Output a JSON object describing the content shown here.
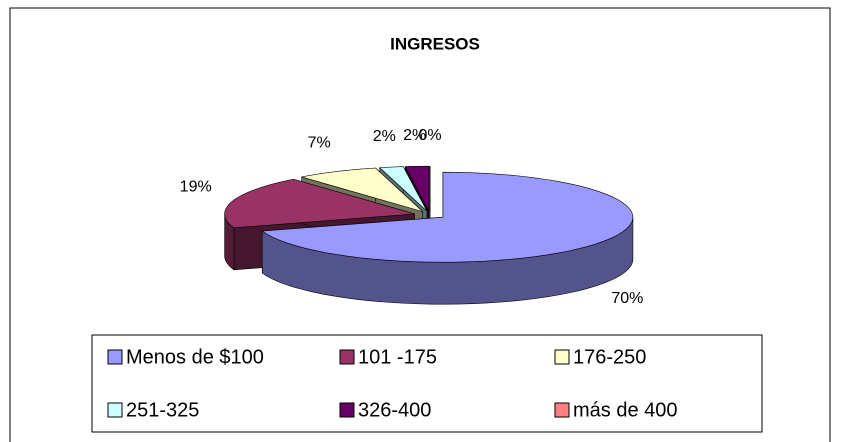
{
  "chart_data": {
    "type": "pie",
    "title": "INGRESOS",
    "categories": [
      "Menos de $100",
      "101 -175",
      "176-250",
      "251-325",
      "326-400",
      "más de 400"
    ],
    "values": [
      70,
      19,
      7,
      2,
      2,
      0
    ],
    "value_labels": [
      "70%",
      "19%",
      "7%",
      "2%",
      "2%",
      "0%"
    ],
    "colors": [
      "#9999ff",
      "#993366",
      "#ffffcc",
      "#ccffff",
      "#660066",
      "#ff8080"
    ],
    "legend": "bottom"
  }
}
